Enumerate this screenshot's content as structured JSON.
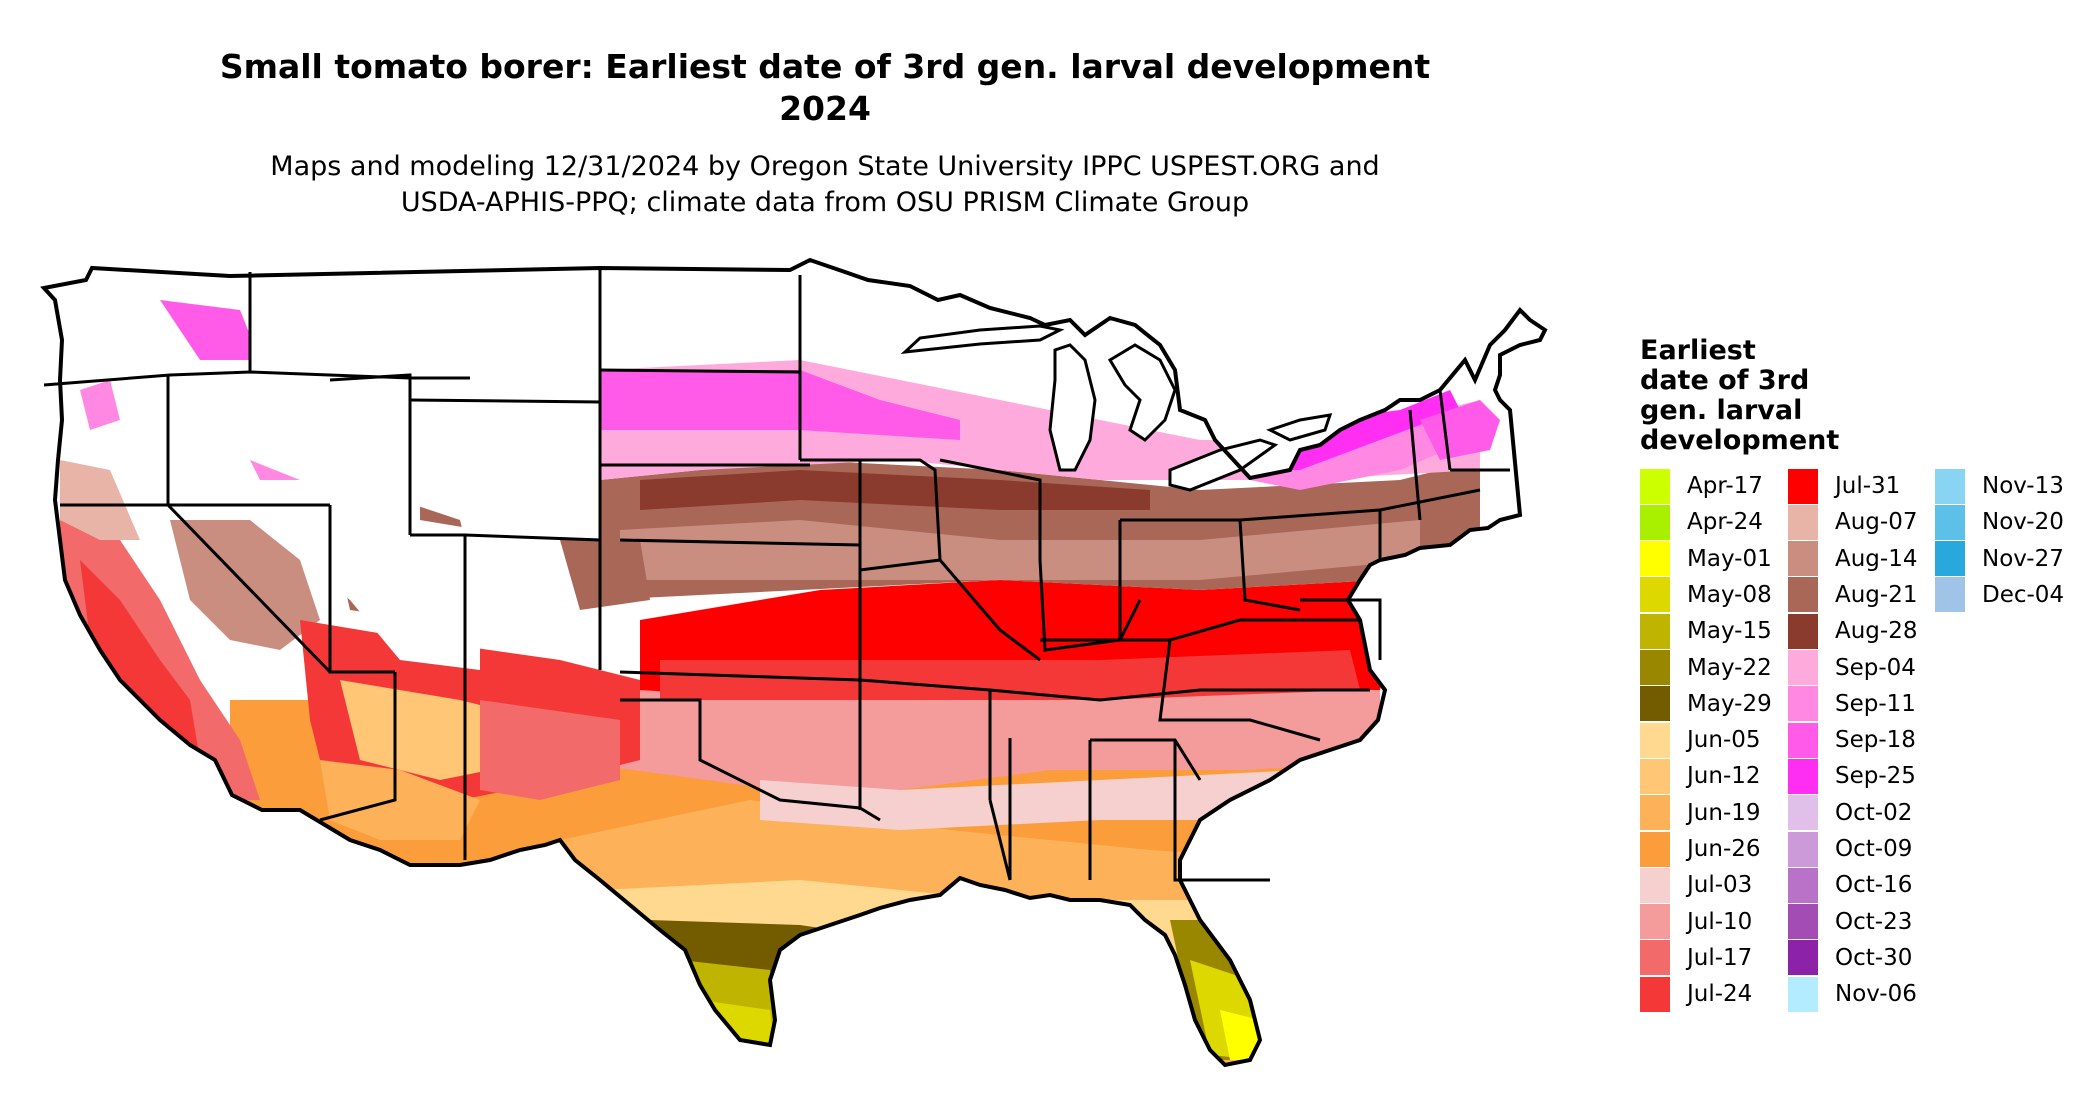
{
  "title": {
    "line1": "Small tomato borer: Earliest date of 3rd gen. larval development",
    "line2": "2024"
  },
  "subtitle": {
    "line1": "Maps and modeling 12/31/2024 by Oregon State University IPPC USPEST.ORG and",
    "line2": "USDA-APHIS-PPQ; climate data from OSU PRISM Climate Group"
  },
  "legend": {
    "title_lines": [
      "Earliest",
      "date of 3rd",
      "gen. larval",
      "development"
    ],
    "columns": [
      [
        {
          "label": "Apr-17",
          "color": "#ccff00"
        },
        {
          "label": "Apr-24",
          "color": "#a8ef00"
        },
        {
          "label": "May-01",
          "color": "#ffff00"
        },
        {
          "label": "May-08",
          "color": "#dcd800"
        },
        {
          "label": "May-15",
          "color": "#bfb400"
        },
        {
          "label": "May-22",
          "color": "#9a8700"
        },
        {
          "label": "May-29",
          "color": "#735c00"
        },
        {
          "label": "Jun-05",
          "color": "#ffd990"
        },
        {
          "label": "Jun-12",
          "color": "#ffc676"
        },
        {
          "label": "Jun-19",
          "color": "#fdb25a"
        },
        {
          "label": "Jun-26",
          "color": "#fb9d3a"
        },
        {
          "label": "Jul-03",
          "color": "#f6cfcf"
        },
        {
          "label": "Jul-10",
          "color": "#f49b9b"
        },
        {
          "label": "Jul-17",
          "color": "#f26a6a"
        },
        {
          "label": "Jul-24",
          "color": "#f43838"
        }
      ],
      [
        {
          "label": "Jul-31",
          "color": "#ff0000"
        },
        {
          "label": "Aug-07",
          "color": "#e8b4a8"
        },
        {
          "label": "Aug-14",
          "color": "#c98e80"
        },
        {
          "label": "Aug-21",
          "color": "#a96757"
        },
        {
          "label": "Aug-28",
          "color": "#8b3a2e"
        },
        {
          "label": "Sep-04",
          "color": "#ffaadd"
        },
        {
          "label": "Sep-11",
          "color": "#ff88e2"
        },
        {
          "label": "Sep-18",
          "color": "#ff5ae8"
        },
        {
          "label": "Sep-25",
          "color": "#ff2ef2"
        },
        {
          "label": "Oct-02",
          "color": "#e0c0e8"
        },
        {
          "label": "Oct-09",
          "color": "#cc9ad8"
        },
        {
          "label": "Oct-16",
          "color": "#b872c8"
        },
        {
          "label": "Oct-23",
          "color": "#a24cb4"
        },
        {
          "label": "Oct-30",
          "color": "#8c22a8"
        },
        {
          "label": "Nov-06",
          "color": "#b4ecff"
        }
      ],
      [
        {
          "label": "Nov-13",
          "color": "#88d4f2"
        },
        {
          "label": "Nov-20",
          "color": "#5cc0e8"
        },
        {
          "label": "Nov-27",
          "color": "#28a8dc"
        },
        {
          "label": "Dec-04",
          "color": "#a0c4e8"
        }
      ]
    ]
  }
}
